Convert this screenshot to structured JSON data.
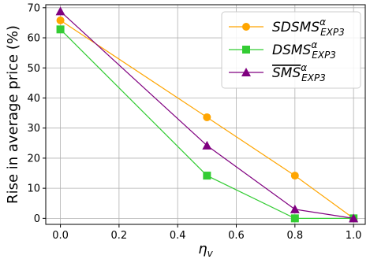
{
  "chart_data": {
    "type": "line",
    "title": "",
    "xlabel": "η_v",
    "ylabel": "Rise in average price (%)",
    "x": [
      0.0,
      0.5,
      0.8,
      1.0
    ],
    "xlim": [
      -0.05,
      1.04
    ],
    "ylim": [
      -2,
      71
    ],
    "xticks": [
      0.0,
      0.2,
      0.4,
      0.6,
      0.8,
      1.0
    ],
    "xtick_labels": [
      "0.0",
      "0.2",
      "0.4",
      "0.6",
      "0.8",
      "1.0"
    ],
    "yticks": [
      0,
      10,
      20,
      30,
      40,
      50,
      60,
      70
    ],
    "ytick_labels": [
      "0",
      "10",
      "20",
      "30",
      "40",
      "50",
      "60",
      "70"
    ],
    "grid": true,
    "legend_position": "top-right",
    "series": [
      {
        "name": "SDSMS^α_EXP3",
        "name_main": "SDSMS",
        "name_sup": "α",
        "name_sub": "EXP3",
        "overline": false,
        "color": "#ffa500",
        "marker": "circle",
        "values": [
          65.8,
          33.6,
          14.2,
          0.0
        ]
      },
      {
        "name": "DSMS^α_EXP3",
        "name_main": "DSMS",
        "name_sup": "α",
        "name_sub": "EXP3",
        "overline": false,
        "color": "#33cc33",
        "marker": "square",
        "values": [
          62.8,
          14.2,
          0.0,
          0.0
        ]
      },
      {
        "name": "SMS^α_EXP3 (overlined)",
        "name_main": "SMS",
        "name_sup": "α",
        "name_sub": "EXP3",
        "overline": true,
        "color": "#800080",
        "marker": "triangle",
        "values": [
          68.8,
          24.2,
          3.0,
          0.0
        ]
      }
    ]
  }
}
